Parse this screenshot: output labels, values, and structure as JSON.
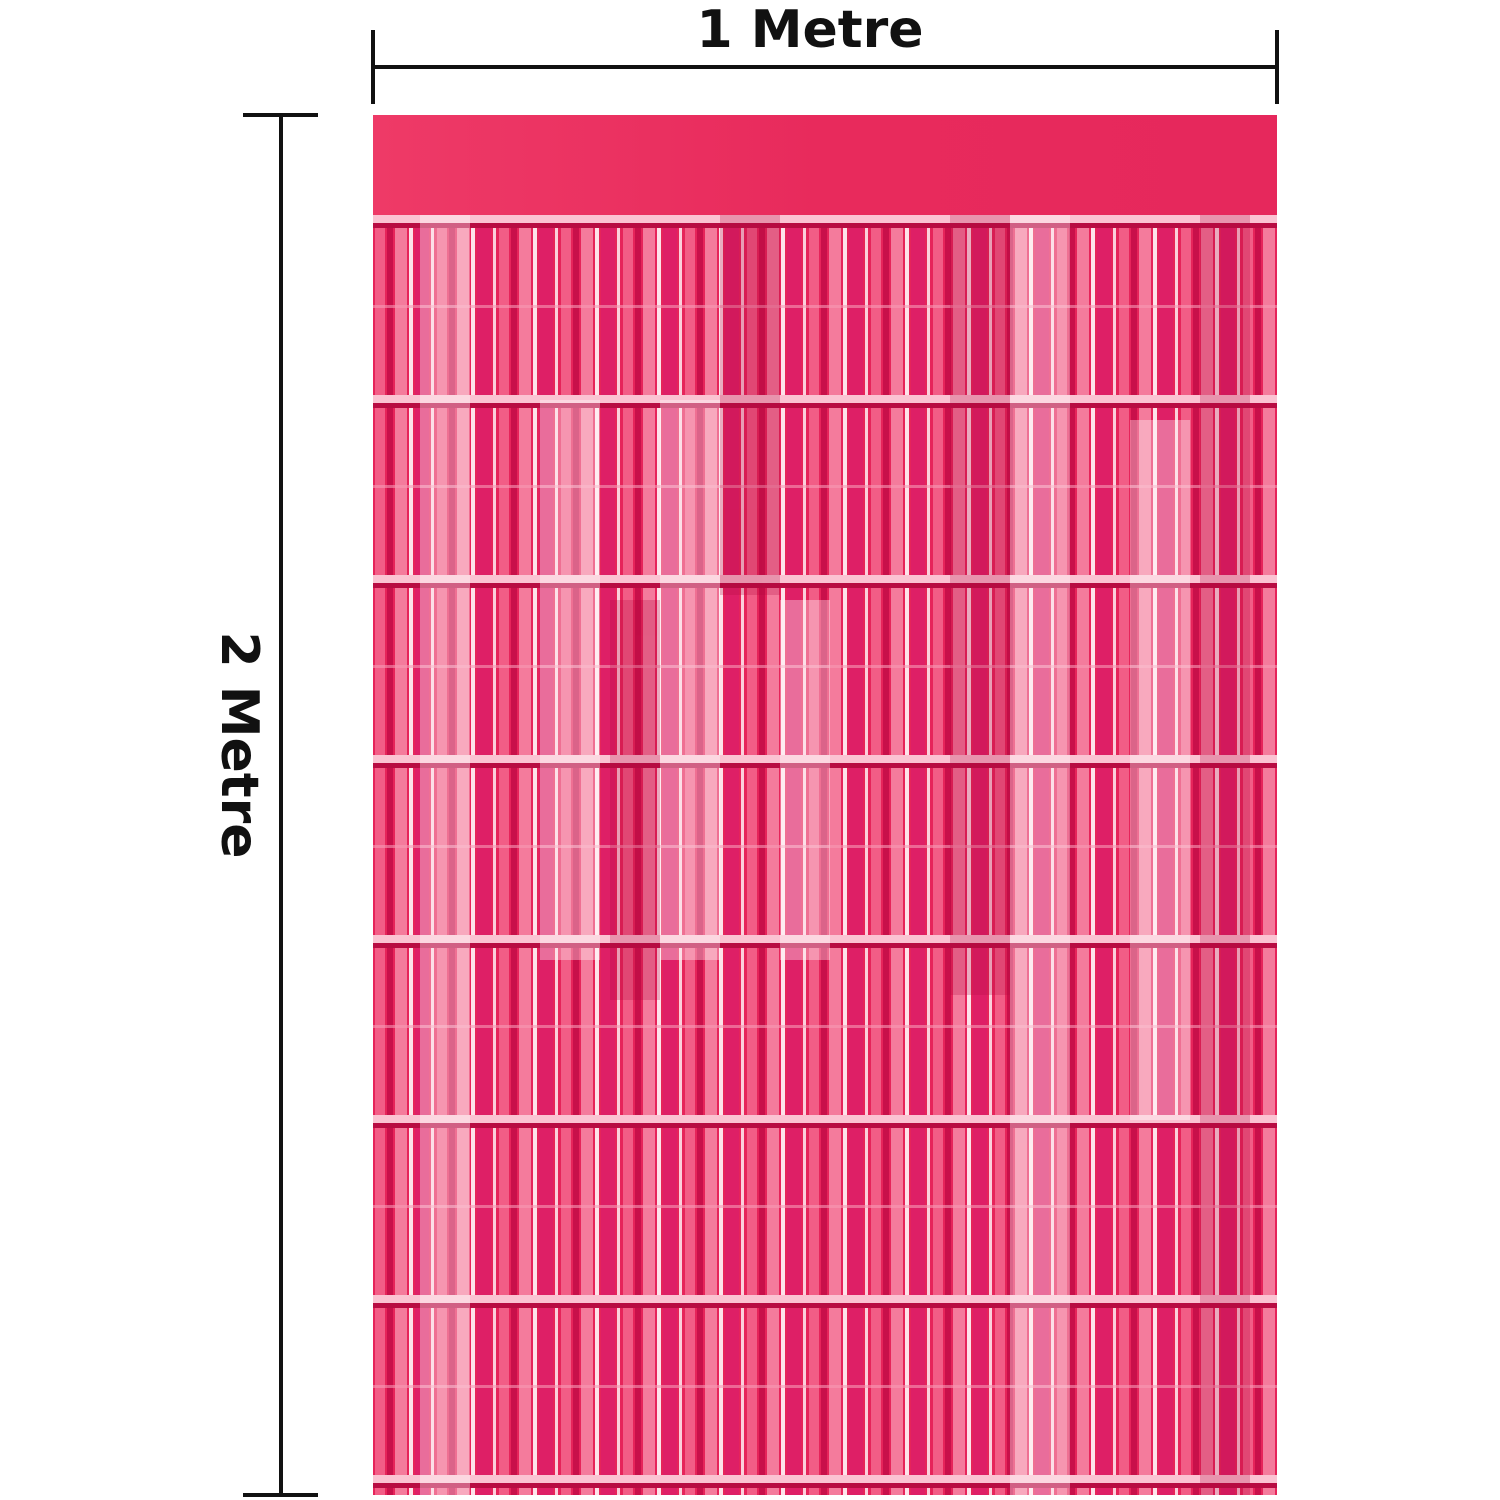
{
  "labels": {
    "width": "1 Metre",
    "height": "2 Metre"
  }
}
